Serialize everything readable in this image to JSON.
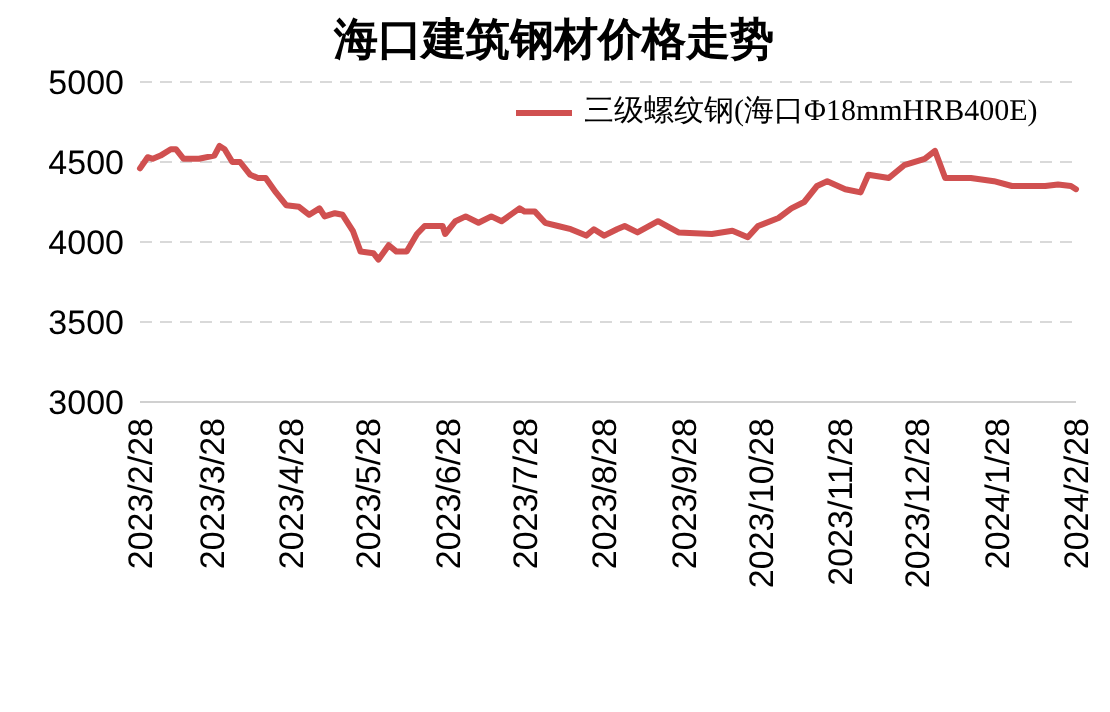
{
  "chart_data": {
    "type": "line",
    "title": "海口建筑钢材价格走势",
    "x": [
      "2023-02-28",
      "2023-03-03",
      "2023-03-05",
      "2023-03-08",
      "2023-03-12",
      "2023-03-14",
      "2023-03-17",
      "2023-03-23",
      "2023-03-29",
      "2023-03-31",
      "2023-04-02",
      "2023-04-05",
      "2023-04-08",
      "2023-04-12",
      "2023-04-15",
      "2023-04-18",
      "2023-04-22",
      "2023-04-26",
      "2023-05-01",
      "2023-05-05",
      "2023-05-09",
      "2023-05-11",
      "2023-05-15",
      "2023-05-18",
      "2023-05-22",
      "2023-05-25",
      "2023-05-30",
      "2023-06-01",
      "2023-06-05",
      "2023-06-08",
      "2023-06-12",
      "2023-06-16",
      "2023-06-19",
      "2023-06-26",
      "2023-06-27",
      "2023-07-01",
      "2023-07-05",
      "2023-07-10",
      "2023-07-15",
      "2023-07-19",
      "2023-07-26",
      "2023-07-28",
      "2023-08-01",
      "2023-08-05",
      "2023-08-10",
      "2023-08-15",
      "2023-08-21",
      "2023-08-24",
      "2023-08-28",
      "2023-09-02",
      "2023-09-05",
      "2023-09-10",
      "2023-09-18",
      "2023-09-26",
      "2023-10-09",
      "2023-10-17",
      "2023-10-23",
      "2023-10-27",
      "2023-11-04",
      "2023-11-09",
      "2023-11-14",
      "2023-11-19",
      "2023-11-23",
      "2023-11-30",
      "2023-12-06",
      "2023-12-09",
      "2023-12-17",
      "2023-12-23",
      "2023-12-31",
      "2024-01-04",
      "2024-01-08",
      "2024-01-18",
      "2024-01-27",
      "2024-02-03",
      "2024-02-16",
      "2024-02-21",
      "2024-02-26",
      "2024-02-28"
    ],
    "series": [
      {
        "name": "三级螺纹钢(海口Φ18mmHRB400E)",
        "color": "#d05050",
        "values": [
          4460,
          4530,
          4520,
          4540,
          4580,
          4580,
          4520,
          4520,
          4540,
          4600,
          4580,
          4500,
          4500,
          4420,
          4400,
          4400,
          4310,
          4230,
          4220,
          4170,
          4210,
          4160,
          4180,
          4170,
          4070,
          3940,
          3930,
          3890,
          3980,
          3940,
          3940,
          4050,
          4100,
          4100,
          4050,
          4130,
          4160,
          4120,
          4160,
          4130,
          4210,
          4190,
          4190,
          4120,
          4100,
          4080,
          4040,
          4080,
          4040,
          4080,
          4100,
          4060,
          4130,
          4060,
          4050,
          4070,
          4030,
          4100,
          4150,
          4210,
          4250,
          4350,
          4380,
          4330,
          4310,
          4420,
          4400,
          4480,
          4520,
          4570,
          4400,
          4400,
          4380,
          4350,
          4350,
          4360,
          4350,
          4330
        ]
      }
    ],
    "ylim": [
      3000,
      5000
    ],
    "yticks": [
      3000,
      3500,
      4000,
      4500,
      5000
    ],
    "xlim": [
      "2023-02-28",
      "2024-02-28"
    ],
    "xticks": [
      {
        "value": "2023-02-28",
        "label": "2023/2/28"
      },
      {
        "value": "2023-03-28",
        "label": "2023/3/28"
      },
      {
        "value": "2023-04-28",
        "label": "2023/4/28"
      },
      {
        "value": "2023-05-28",
        "label": "2023/5/28"
      },
      {
        "value": "2023-06-28",
        "label": "2023/6/28"
      },
      {
        "value": "2023-07-28",
        "label": "2023/7/28"
      },
      {
        "value": "2023-08-28",
        "label": "2023/8/28"
      },
      {
        "value": "2023-09-28",
        "label": "2023/9/28"
      },
      {
        "value": "2023-10-28",
        "label": "2023/10/28"
      },
      {
        "value": "2023-11-28",
        "label": "2023/11/28"
      },
      {
        "value": "2023-12-28",
        "label": "2023/12/28"
      },
      {
        "value": "2024-01-28",
        "label": "2024/1/28"
      },
      {
        "value": "2024-02-28",
        "label": "2024/2/28"
      }
    ],
    "grid": "y",
    "legend": "top right",
    "marker": "none",
    "line_style": "solid"
  }
}
